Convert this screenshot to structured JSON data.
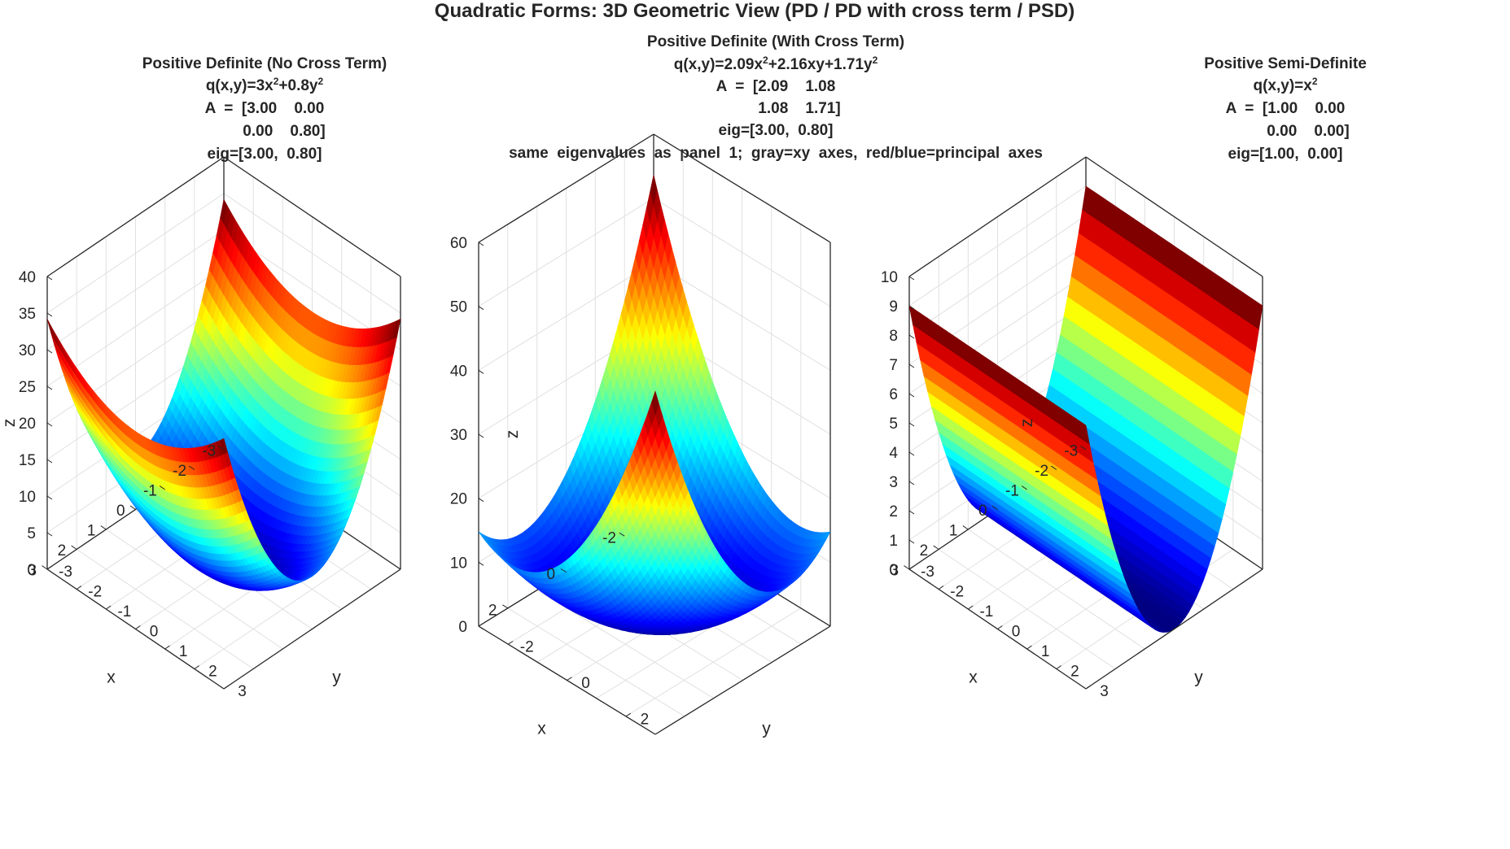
{
  "figure": {
    "title": "Quadratic Forms: 3D Geometric View (PD / PD with cross term / PSD)"
  },
  "colors": {
    "text": "#262626",
    "axis": "#262626",
    "grid": "#e0e0e0",
    "colormap": "jet"
  },
  "chart_data": [
    {
      "type": "surface",
      "panel": "Positive Definite (No Cross Term)",
      "title_lines": [
        "Positive  Definite  (No  Cross  Term)",
        "q(x,y)=3x",
        "2",
        "+0.8y",
        "2",
        "A  =  [3.00    0.00",
        "0.00    0.80]",
        "eig=[3.00,  0.80]"
      ],
      "formula": {
        "a": 3.0,
        "b": 0.0,
        "c": 0.8
      },
      "matrix": [
        [
          3.0,
          0.0
        ],
        [
          0.0,
          0.8
        ]
      ],
      "eigenvalues": [
        3.0,
        0.8
      ],
      "xlim": [
        -3,
        3
      ],
      "ylim": [
        -3,
        3
      ],
      "zlim": [
        0,
        40
      ],
      "xticks": [
        "-3",
        "-2",
        "-1",
        "0",
        "1",
        "2",
        "3"
      ],
      "yticks": [
        "-3",
        "-2",
        "-1",
        "0",
        "1",
        "2",
        "3"
      ],
      "zticks": [
        "0",
        "5",
        "10",
        "15",
        "20",
        "25",
        "30",
        "35",
        "40"
      ],
      "xlabel": "x",
      "ylabel": "y",
      "zlabel": "z"
    },
    {
      "type": "surface",
      "panel": "Positive Definite (With Cross Term)",
      "title_lines": [
        "Positive  Definite  (With  Cross  Term)",
        "q(x,y)=2.09x",
        "2",
        "+2.16xy+1.71y",
        "2",
        "A  =  [2.09    1.08",
        "1.08    1.71]",
        "eig=[3.00,  0.80]",
        "same  eigenvalues  as  panel  1;  gray=xy  axes,  red/blue=principal  axes"
      ],
      "formula": {
        "a": 2.09,
        "b": 2.16,
        "c": 1.71
      },
      "matrix": [
        [
          2.09,
          1.08
        ],
        [
          1.08,
          1.71
        ]
      ],
      "eigenvalues": [
        3.0,
        0.8
      ],
      "xlim": [
        -3,
        3
      ],
      "ylim": [
        -3,
        3
      ],
      "zlim": [
        0,
        60
      ],
      "xticks": [
        "-2",
        "0",
        "2"
      ],
      "yticks": [
        "-2",
        "0",
        "2"
      ],
      "zticks": [
        "0",
        "10",
        "20",
        "30",
        "40",
        "50",
        "60"
      ],
      "xlabel": "x",
      "ylabel": "y",
      "zlabel": "z"
    },
    {
      "type": "surface",
      "panel": "Positive Semi-Definite",
      "title_lines": [
        "Positive  Semi-Definite",
        "q(x,y)=x",
        "2",
        "A  =  [1.00    0.00",
        "0.00    0.00]",
        "eig=[1.00,  0.00]"
      ],
      "formula": {
        "a": 1.0,
        "b": 0.0,
        "c": 0.0
      },
      "matrix": [
        [
          1.0,
          0.0
        ],
        [
          0.0,
          0.0
        ]
      ],
      "eigenvalues": [
        1.0,
        0.0
      ],
      "xlim": [
        -3,
        3
      ],
      "ylim": [
        -3,
        3
      ],
      "zlim": [
        0,
        10
      ],
      "xticks": [
        "-3",
        "-2",
        "-1",
        "0",
        "1",
        "2",
        "3"
      ],
      "yticks": [
        "-3",
        "-2",
        "-1",
        "0",
        "1",
        "2",
        "3"
      ],
      "zticks": [
        "0",
        "1",
        "2",
        "3",
        "4",
        "5",
        "6",
        "7",
        "8",
        "9",
        "10"
      ],
      "xlabel": "x",
      "ylabel": "y",
      "zlabel": "z"
    }
  ]
}
